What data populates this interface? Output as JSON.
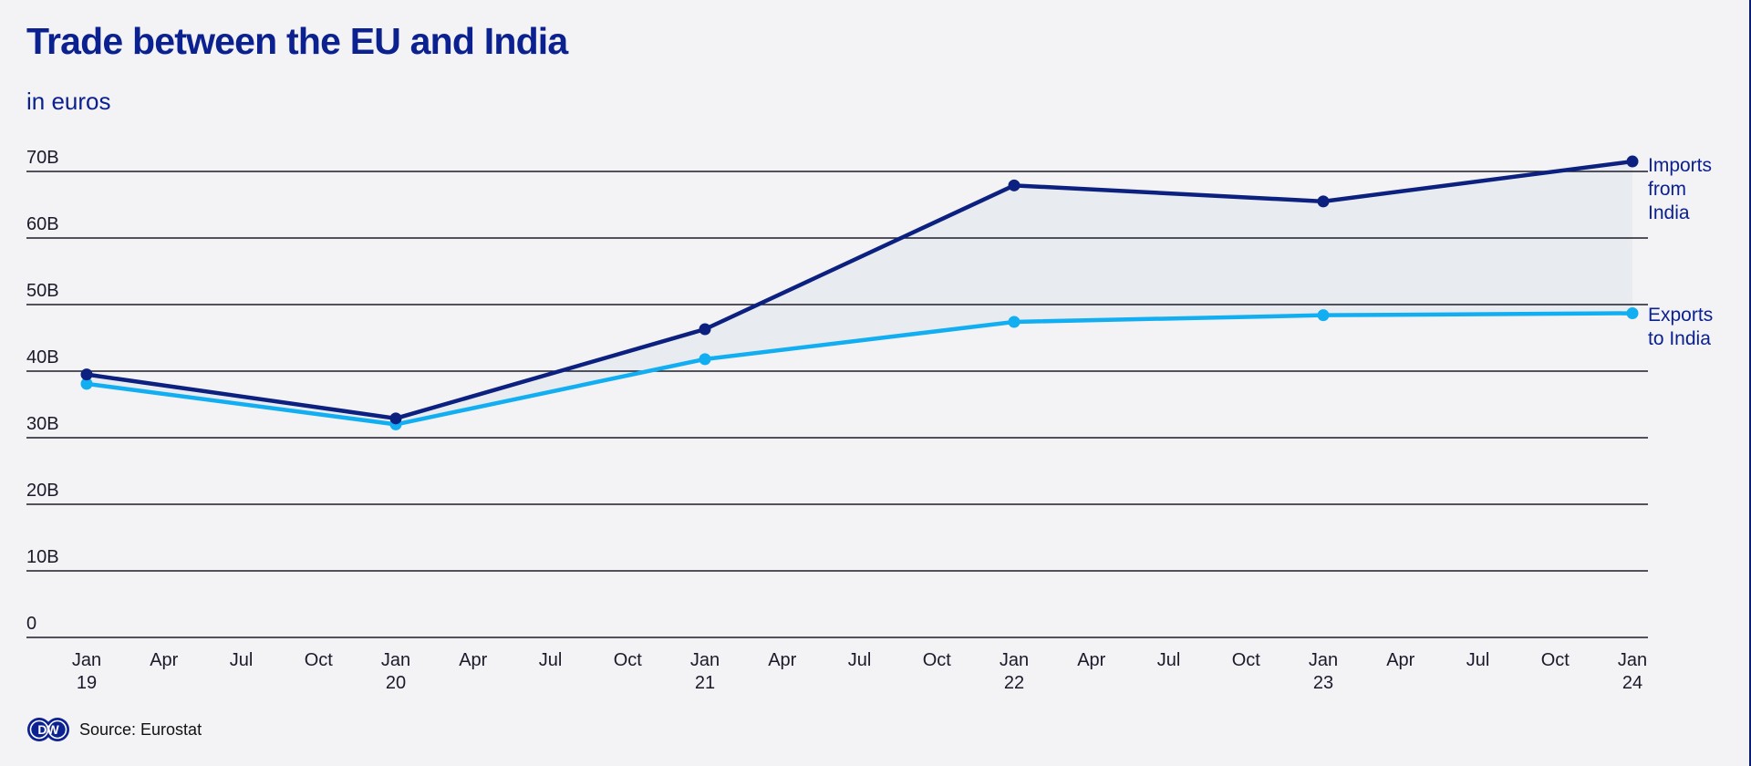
{
  "header": {
    "title": "Trade between the EU and India",
    "subtitle": "in euros"
  },
  "footer": {
    "source": "Source: Eurostat",
    "logo_text": "DW"
  },
  "colors": {
    "text": "#0c2190",
    "imports": "#0c2080",
    "exports": "#12aef2",
    "fill": "#e8ecf1",
    "grid": "#1c1c2a"
  },
  "chart_data": {
    "type": "line",
    "title": "Trade between the EU and India",
    "subtitle": "in euros",
    "xlabel": "",
    "ylabel": "",
    "ylim": [
      0,
      70
    ],
    "y_ticks": [
      0,
      10,
      20,
      30,
      40,
      50,
      60,
      70
    ],
    "y_tick_labels": [
      "0",
      "10B",
      "20B",
      "30B",
      "40B",
      "50B",
      "60B",
      "70B"
    ],
    "x_ticks": [
      {
        "line1": "Jan",
        "line2": "19"
      },
      {
        "line1": "Apr",
        "line2": ""
      },
      {
        "line1": "Jul",
        "line2": ""
      },
      {
        "line1": "Oct",
        "line2": ""
      },
      {
        "line1": "Jan",
        "line2": "20"
      },
      {
        "line1": "Apr",
        "line2": ""
      },
      {
        "line1": "Jul",
        "line2": ""
      },
      {
        "line1": "Oct",
        "line2": ""
      },
      {
        "line1": "Jan",
        "line2": "21"
      },
      {
        "line1": "Apr",
        "line2": ""
      },
      {
        "line1": "Jul",
        "line2": ""
      },
      {
        "line1": "Oct",
        "line2": ""
      },
      {
        "line1": "Jan",
        "line2": "22"
      },
      {
        "line1": "Apr",
        "line2": ""
      },
      {
        "line1": "Jul",
        "line2": ""
      },
      {
        "line1": "Oct",
        "line2": ""
      },
      {
        "line1": "Jan",
        "line2": "23"
      },
      {
        "line1": "Apr",
        "line2": ""
      },
      {
        "line1": "Jul",
        "line2": ""
      },
      {
        "line1": "Oct",
        "line2": ""
      },
      {
        "line1": "Jan",
        "line2": "24"
      }
    ],
    "x": [
      "2019",
      "2020",
      "2021",
      "2022",
      "2023",
      "2024"
    ],
    "x_quarter_index": [
      0,
      4,
      8,
      12,
      16,
      20
    ],
    "series": [
      {
        "name": "Imports from India",
        "label_lines": [
          "Imports",
          "from",
          "India"
        ],
        "values": [
          39.5,
          32.9,
          46.3,
          67.9,
          65.5,
          71.5
        ]
      },
      {
        "name": "Exports to India",
        "label_lines": [
          "Exports",
          "to India"
        ],
        "values": [
          38.1,
          32.0,
          41.8,
          47.4,
          48.4,
          48.7
        ]
      }
    ],
    "grid": true,
    "legend": "direct labels at right end of lines"
  }
}
